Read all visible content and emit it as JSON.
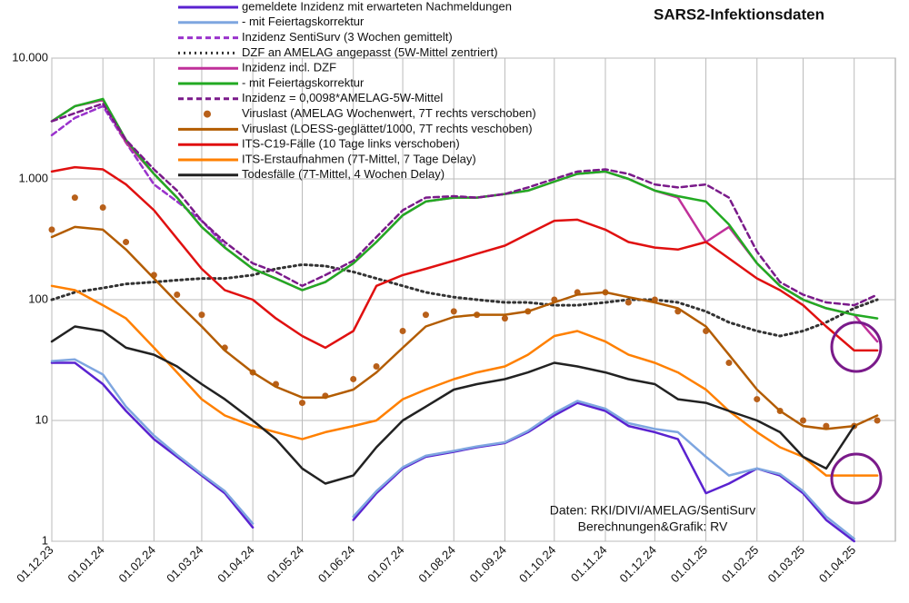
{
  "chart_data": {
    "type": "line",
    "title": "SARS2-Infektionsdaten",
    "annotations": [
      "Daten: RKI/DIVI/AMELAG/SentiSurv",
      "Berechnungen&Grafik: RV"
    ],
    "x": [
      "01.12.23",
      "15.12.23",
      "01.01.24",
      "15.01.24",
      "01.02.24",
      "15.02.24",
      "01.03.24",
      "15.03.24",
      "01.04.24",
      "15.04.24",
      "01.05.24",
      "15.05.24",
      "01.06.24",
      "15.06.24",
      "01.07.24",
      "15.07.24",
      "01.08.24",
      "15.08.24",
      "01.09.24",
      "15.09.24",
      "01.10.24",
      "15.10.24",
      "01.11.24",
      "15.11.24",
      "01.12.24",
      "15.12.24",
      "01.01.25",
      "15.01.25",
      "01.02.25",
      "15.02.25",
      "01.03.25",
      "15.03.25",
      "01.04.25",
      "15.04.25"
    ],
    "xlim": [
      "01.12.23",
      "26.04.25"
    ],
    "xticks": [
      "01.12.23",
      "01.01.24",
      "01.02.24",
      "01.03.24",
      "01.04.24",
      "01.05.24",
      "01.06.24",
      "01.07.24",
      "01.08.24",
      "01.09.24",
      "01.10.24",
      "01.11.24",
      "01.12.24",
      "01.01.25",
      "01.02.25",
      "01.03.25",
      "01.04.25"
    ],
    "ylim": [
      1,
      10000
    ],
    "log_y": true,
    "grid": true,
    "yticks": [
      {
        "value": 10000,
        "label": "10.000"
      },
      {
        "value": 1000,
        "label": "1.000"
      },
      100,
      10,
      1
    ],
    "series": [
      {
        "name": "gemeldete Inzidenz mit erwarteten Nachmeldungen",
        "color": "#5a22d0",
        "style": "solid",
        "values": [
          30,
          30,
          20,
          12,
          7,
          5,
          3.5,
          2.5,
          1.3,
          null,
          null,
          null,
          1.5,
          2.5,
          4,
          5,
          5.5,
          6,
          6.5,
          8,
          11,
          14,
          12,
          9,
          8,
          7,
          2.5,
          3,
          4,
          3.5,
          2.5,
          1.5,
          1,
          null
        ]
      },
      {
        "name": "- mit Feiertagskorrektur",
        "color": "#7ea6e0",
        "style": "solid",
        "values": [
          31,
          32,
          24,
          13,
          7.5,
          5.2,
          3.6,
          2.6,
          1.4,
          null,
          null,
          null,
          1.6,
          2.6,
          4.1,
          5.1,
          5.6,
          6.1,
          6.6,
          8.2,
          11.5,
          14.5,
          12.5,
          9.5,
          8.5,
          8,
          5,
          3.5,
          4,
          3.6,
          2.6,
          1.6,
          1.05,
          null
        ]
      },
      {
        "name": "Inzidenz SentiSurv (3 Wochen gemittelt)",
        "color": "#9a33cc",
        "style": "dashed",
        "values": [
          2300,
          3200,
          4000,
          2000,
          900,
          650,
          450,
          280,
          null,
          null,
          null,
          null,
          null,
          null,
          null,
          null,
          null,
          null,
          null,
          null,
          null,
          null,
          null,
          null,
          null,
          null,
          null,
          null,
          null,
          null,
          null,
          null,
          null,
          null
        ]
      },
      {
        "name": "DZF an AMELAG angepasst (5W-Mittel zentriert)",
        "color": "#333333",
        "style": "dotted",
        "values": [
          100,
          115,
          125,
          135,
          140,
          145,
          150,
          150,
          160,
          180,
          195,
          190,
          170,
          150,
          130,
          115,
          105,
          100,
          95,
          95,
          90,
          90,
          95,
          100,
          100,
          95,
          80,
          65,
          55,
          50,
          55,
          65,
          85,
          100
        ]
      },
      {
        "name": "Inzidenz incl. DZF",
        "color": "#c0309a",
        "style": "solid",
        "values": [
          3000,
          4000,
          4500,
          2000,
          1100,
          700,
          400,
          270,
          180,
          150,
          120,
          140,
          200,
          300,
          500,
          650,
          700,
          700,
          750,
          800,
          950,
          1100,
          1150,
          1000,
          800,
          700,
          300,
          400,
          200,
          130,
          100,
          85,
          75,
          45
        ]
      },
      {
        "name": "- mit Feiertagskorrektur",
        "color": "#22aa22",
        "style": "solid",
        "values": [
          3000,
          4000,
          4600,
          2100,
          1100,
          700,
          400,
          270,
          180,
          150,
          120,
          140,
          200,
          300,
          500,
          650,
          700,
          700,
          750,
          800,
          950,
          1100,
          1150,
          1000,
          800,
          720,
          650,
          420,
          200,
          130,
          100,
          85,
          75,
          70
        ]
      },
      {
        "name": "Inzidenz = 0,0098*AMELAG-5W-Mittel",
        "color": "#7a1a8a",
        "style": "dashed",
        "values": [
          3000,
          3500,
          4200,
          2100,
          1200,
          800,
          450,
          300,
          200,
          170,
          130,
          160,
          210,
          330,
          550,
          700,
          720,
          700,
          750,
          850,
          1000,
          1150,
          1200,
          1100,
          900,
          850,
          900,
          700,
          250,
          140,
          110,
          95,
          90,
          110
        ]
      },
      {
        "name": "Viruslast (AMELAG Wochenwert, 7T rechts verschoben)",
        "color": "#b8601a",
        "style": "markers",
        "values": [
          380,
          700,
          580,
          300,
          160,
          110,
          75,
          40,
          25,
          20,
          14,
          16,
          22,
          28,
          55,
          75,
          80,
          75,
          70,
          80,
          100,
          115,
          115,
          95,
          100,
          80,
          55,
          30,
          15,
          12,
          10,
          9,
          9,
          10
        ]
      },
      {
        "name": "Viruslast (LOESS-geglättet/1000, 7T rechts veschoben)",
        "color": "#b35c00",
        "style": "solid",
        "values": [
          330,
          400,
          380,
          260,
          150,
          95,
          60,
          38,
          25,
          19,
          15.5,
          15.5,
          18,
          25,
          40,
          60,
          72,
          75,
          75,
          80,
          95,
          110,
          115,
          105,
          95,
          85,
          60,
          35,
          18,
          12,
          9,
          8.5,
          9,
          11
        ]
      },
      {
        "name": "ITS-C19-Fälle (10 Tage links verschoben)",
        "color": "#e01010",
        "style": "solid",
        "values": [
          1150,
          1250,
          1200,
          900,
          550,
          320,
          180,
          120,
          100,
          70,
          50,
          40,
          55,
          130,
          160,
          180,
          210,
          240,
          280,
          350,
          450,
          460,
          380,
          300,
          270,
          260,
          300,
          220,
          150,
          120,
          90,
          60,
          38,
          38
        ]
      },
      {
        "name": "ITS-Erstaufnahmen (7T-Mittel, 7 Tage Delay)",
        "color": "#ff8000",
        "style": "solid",
        "values": [
          130,
          120,
          90,
          70,
          40,
          25,
          15,
          11,
          9,
          8,
          7,
          8,
          9,
          10,
          15,
          18,
          22,
          25,
          28,
          35,
          50,
          55,
          45,
          35,
          30,
          25,
          18,
          12,
          8,
          6,
          5,
          3.5,
          3.5,
          3.5
        ]
      },
      {
        "name": "Todesfälle (7T-Mittel, 4 Wochen Delay)",
        "color": "#222222",
        "style": "solid",
        "values": [
          45,
          60,
          55,
          40,
          35,
          28,
          20,
          15,
          10,
          7,
          4,
          3,
          3.5,
          6,
          10,
          13,
          18,
          20,
          22,
          25,
          30,
          28,
          25,
          22,
          20,
          15,
          14,
          12,
          10,
          8,
          5,
          4,
          9,
          null
        ]
      }
    ]
  }
}
